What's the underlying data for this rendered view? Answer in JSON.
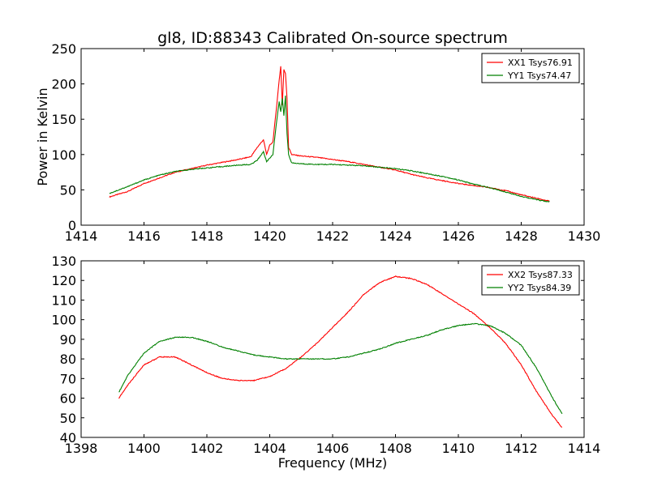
{
  "figure": {
    "title": "gl8, ID:88343 Calibrated On-source spectrum",
    "ylabel": "Power in Kelvin",
    "xlabel": "Frequency (MHz)"
  },
  "colors": {
    "XX": "#ff0000",
    "YY": "#008000"
  },
  "chart_data": [
    {
      "type": "line",
      "title": "gl8, ID:88343 Calibrated On-source spectrum",
      "xlabel": "",
      "ylabel": "Power in Kelvin",
      "xlim": [
        1414,
        1430
      ],
      "ylim": [
        0,
        250
      ],
      "xticks": [
        1414,
        1416,
        1418,
        1420,
        1422,
        1424,
        1426,
        1428,
        1430
      ],
      "yticks": [
        0,
        50,
        100,
        150,
        200,
        250
      ],
      "grid": false,
      "legend_position": "top-right",
      "series": [
        {
          "name": "XX1 Tsys76.91",
          "color": "#ff0000",
          "x": [
            1414.9,
            1415.5,
            1416,
            1416.5,
            1417,
            1417.5,
            1418,
            1418.5,
            1419,
            1419.4,
            1419.6,
            1419.8,
            1419.9,
            1420.0,
            1420.1,
            1420.2,
            1420.3,
            1420.35,
            1420.4,
            1420.45,
            1420.5,
            1420.55,
            1420.6,
            1420.7,
            1421,
            1421.5,
            1422,
            1422.5,
            1423,
            1423.5,
            1424,
            1424.5,
            1425,
            1425.5,
            1426,
            1426.5,
            1427,
            1427.5,
            1428,
            1428.5,
            1428.9
          ],
          "y": [
            40,
            48,
            59,
            67,
            75,
            80,
            85,
            89,
            93,
            97,
            110,
            121,
            100,
            113,
            118,
            160,
            205,
            225,
            170,
            220,
            215,
            180,
            110,
            100,
            98,
            96,
            93,
            90,
            86,
            82,
            78,
            72,
            67,
            63,
            59,
            56,
            53,
            49,
            43,
            38,
            34
          ]
        },
        {
          "name": "YY1 Tsys74.47",
          "color": "#008000",
          "x": [
            1414.9,
            1415.5,
            1416,
            1416.5,
            1417,
            1417.5,
            1418,
            1418.5,
            1419,
            1419.4,
            1419.6,
            1419.8,
            1419.9,
            1420.0,
            1420.1,
            1420.2,
            1420.3,
            1420.35,
            1420.4,
            1420.45,
            1420.5,
            1420.55,
            1420.6,
            1420.7,
            1421,
            1421.5,
            1422,
            1422.5,
            1423,
            1423.5,
            1424,
            1424.5,
            1425,
            1425.5,
            1426,
            1426.5,
            1427,
            1427.5,
            1428,
            1428.5,
            1428.9
          ],
          "y": [
            45,
            55,
            64,
            71,
            76,
            79,
            81,
            83,
            85,
            86,
            92,
            104,
            90,
            95,
            100,
            140,
            175,
            160,
            180,
            155,
            183,
            130,
            100,
            88,
            87,
            86,
            86,
            85,
            84,
            82,
            80,
            77,
            73,
            69,
            64,
            58,
            53,
            47,
            41,
            36,
            33
          ]
        }
      ]
    },
    {
      "type": "line",
      "title": "",
      "xlabel": "Frequency (MHz)",
      "ylabel": "",
      "xlim": [
        1398,
        1414
      ],
      "ylim": [
        40,
        130
      ],
      "xticks": [
        1398,
        1400,
        1402,
        1404,
        1406,
        1408,
        1410,
        1412,
        1414
      ],
      "yticks": [
        40,
        50,
        60,
        70,
        80,
        90,
        100,
        110,
        120,
        130
      ],
      "grid": false,
      "legend_position": "top-right",
      "series": [
        {
          "name": "XX2 Tsys87.33",
          "color": "#ff0000",
          "x": [
            1399.2,
            1399.5,
            1400,
            1400.5,
            1401,
            1401.5,
            1402,
            1402.5,
            1403,
            1403.5,
            1404,
            1404.5,
            1405,
            1405.5,
            1406,
            1406.5,
            1407,
            1407.5,
            1408,
            1408.5,
            1409,
            1409.5,
            1410,
            1410.5,
            1411,
            1411.5,
            1412,
            1412.5,
            1413,
            1413.3
          ],
          "y": [
            60,
            67,
            77,
            81,
            81,
            77,
            73,
            70,
            69,
            69,
            71,
            75,
            81,
            88,
            96,
            104,
            113,
            119,
            122,
            121,
            118,
            113,
            108,
            103,
            96,
            88,
            77,
            63,
            51,
            45
          ]
        },
        {
          "name": "YY2 Tsys84.39",
          "color": "#008000",
          "x": [
            1399.2,
            1399.5,
            1400,
            1400.5,
            1401,
            1401.5,
            1402,
            1402.5,
            1403,
            1403.5,
            1404,
            1404.5,
            1405,
            1405.5,
            1406,
            1406.5,
            1407,
            1407.5,
            1408,
            1408.5,
            1409,
            1409.5,
            1410,
            1410.5,
            1411,
            1411.5,
            1412,
            1412.5,
            1413,
            1413.3
          ],
          "y": [
            63,
            72,
            83,
            89,
            91,
            91,
            89,
            86,
            84,
            82,
            81,
            80,
            80,
            80,
            80,
            81,
            83,
            85,
            88,
            90,
            92,
            95,
            97,
            98,
            97,
            93,
            87,
            75,
            60,
            52
          ]
        }
      ]
    }
  ]
}
